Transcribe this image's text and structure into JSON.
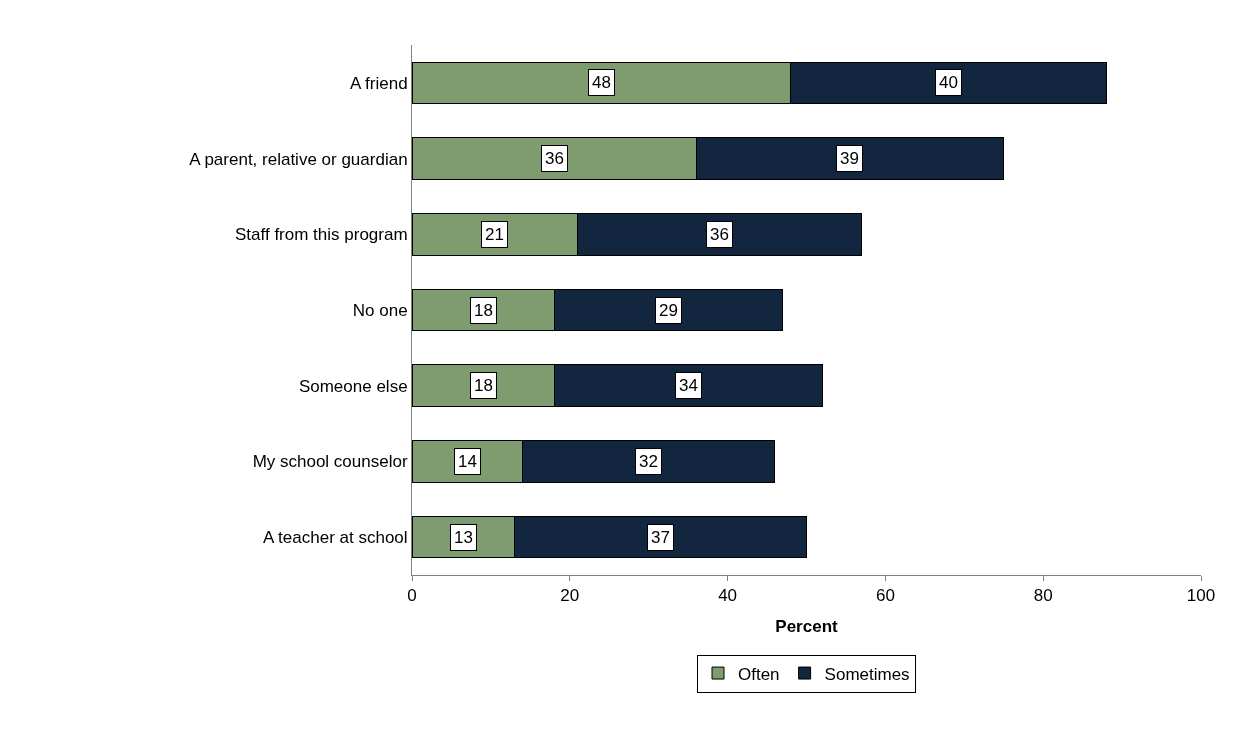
{
  "chart_data": {
    "type": "bar",
    "orientation": "horizontal",
    "stacked": true,
    "xlabel": "Percent",
    "categories": [
      "A friend",
      "A parent, relative or guardian",
      "Staff from this program",
      "No one",
      "Someone else",
      "My school counselor",
      "A teacher at school"
    ],
    "series": [
      {
        "name": "Often",
        "color": "#7f9b70",
        "values": [
          48,
          36,
          21,
          18,
          18,
          14,
          13
        ]
      },
      {
        "name": "Sometimes",
        "color": "#13263f",
        "values": [
          40,
          39,
          36,
          29,
          34,
          32,
          37
        ]
      }
    ],
    "xlim": [
      0,
      100
    ],
    "xticks": [
      0,
      20,
      40,
      60,
      80,
      100
    ],
    "data_labels": true,
    "legend": "bottom"
  }
}
